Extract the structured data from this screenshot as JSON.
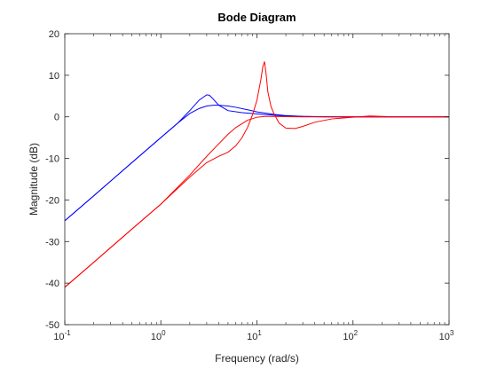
{
  "chart_data": {
    "type": "line",
    "title": "Bode Diagram",
    "xlabel": "Frequency (rad/s)",
    "ylabel": "Magnitude (dB)",
    "xscale": "log",
    "xlim": [
      0.1,
      1000
    ],
    "ylim": [
      -50,
      20
    ],
    "grid": false,
    "x_tick_labels": [
      {
        "base": "10",
        "exp": "-1"
      },
      {
        "base": "10",
        "exp": "0"
      },
      {
        "base": "10",
        "exp": "1"
      },
      {
        "base": "10",
        "exp": "2"
      },
      {
        "base": "10",
        "exp": "3"
      }
    ],
    "y_ticks": [
      20,
      10,
      0,
      -10,
      -20,
      -30,
      -40,
      -50
    ],
    "y_tick_labels": [
      "20",
      "10",
      "0",
      "-10",
      "-20",
      "-30",
      "-40",
      "-50"
    ],
    "series": [
      {
        "color": "#0000ff",
        "x": [
          0.1,
          0.2,
          0.5,
          1,
          1.5,
          2,
          2.5,
          3,
          3.2,
          3.5,
          4,
          5,
          7,
          10,
          15,
          20,
          30,
          50,
          100,
          1000
        ],
        "y": [
          -25,
          -19,
          -11,
          -5,
          -1.5,
          1.5,
          4,
          5.3,
          5.2,
          4.3,
          2.8,
          1.5,
          1.0,
          0.7,
          0.4,
          0.2,
          0.1,
          0.05,
          0,
          0
        ]
      },
      {
        "color": "#0000ff",
        "x": [
          0.1,
          0.2,
          0.5,
          1,
          1.5,
          2,
          2.5,
          3,
          3.5,
          4,
          5,
          6,
          8,
          10,
          15,
          20,
          30,
          50,
          100,
          1000
        ],
        "y": [
          -25,
          -19,
          -11,
          -5,
          -1.5,
          0.8,
          2.0,
          2.6,
          2.8,
          2.8,
          2.6,
          2.3,
          1.7,
          1.2,
          0.6,
          0.3,
          0.1,
          0,
          0,
          0
        ]
      },
      {
        "color": "#ff0000",
        "x": [
          0.1,
          0.2,
          0.5,
          1,
          2,
          3,
          4,
          5,
          6,
          7,
          8,
          9,
          10,
          11,
          11.5,
          12,
          12.5,
          13,
          14,
          15,
          17,
          20,
          25,
          30,
          40,
          60,
          100,
          150,
          200,
          300,
          1000
        ],
        "y": [
          -41,
          -35,
          -27,
          -21,
          -14.5,
          -11,
          -9.5,
          -8.5,
          -7,
          -5,
          -2.5,
          0.5,
          4,
          9,
          12,
          13.3,
          10,
          6,
          2.5,
          0.8,
          -1.5,
          -2.7,
          -2.8,
          -2.3,
          -1.3,
          -0.5,
          -0.1,
          0.2,
          0.1,
          0,
          0
        ]
      },
      {
        "color": "#ff0000",
        "x": [
          0.1,
          0.2,
          0.5,
          1,
          2,
          3,
          4,
          5,
          6,
          8,
          10,
          12,
          15,
          20,
          30,
          50,
          100,
          1000
        ],
        "y": [
          -41,
          -35,
          -27,
          -21,
          -14,
          -9.5,
          -6.5,
          -4.2,
          -2.6,
          -0.8,
          -0.1,
          0.1,
          0.1,
          0.05,
          0,
          0,
          0,
          0
        ]
      }
    ]
  }
}
